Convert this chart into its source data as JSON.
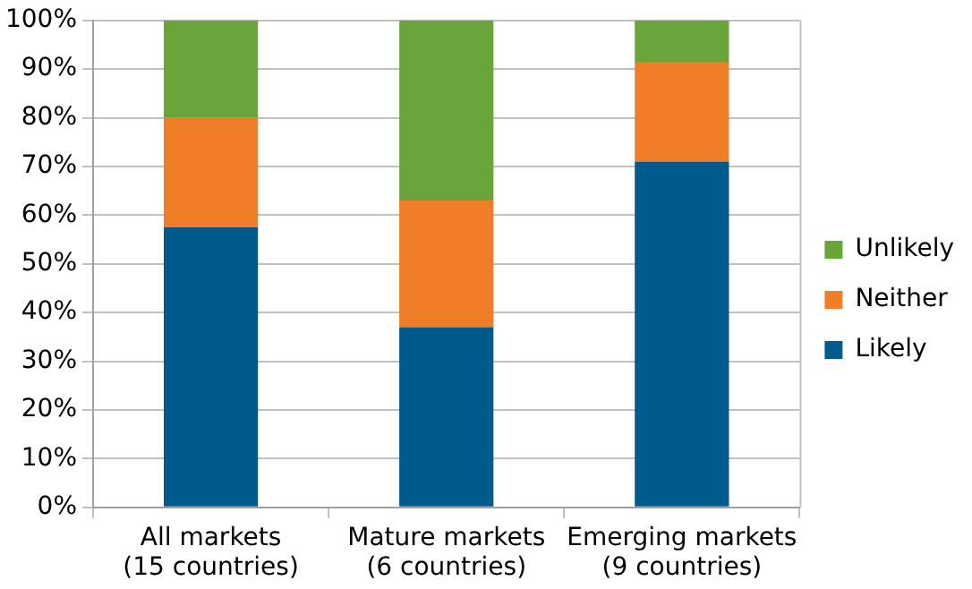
{
  "chart_data": {
    "type": "bar",
    "stacked": true,
    "categories": [
      "All markets\n(15 countries)",
      "Mature markets\n(6 countries)",
      "Emerging markets\n(9 countries)"
    ],
    "series": [
      {
        "name": "Likely",
        "color": "#005a8c",
        "values": [
          57.5,
          37,
          71
        ]
      },
      {
        "name": "Neither",
        "color": "#f07d28",
        "values": [
          22.5,
          26,
          20.5
        ]
      },
      {
        "name": "Unlikely",
        "color": "#6aa53a",
        "values": [
          20,
          37,
          8.5
        ]
      }
    ],
    "ylim": [
      0,
      100
    ],
    "yticks": [
      {
        "value": 0,
        "label": "0%"
      },
      {
        "value": 10,
        "label": "10%"
      },
      {
        "value": 20,
        "label": "20%"
      },
      {
        "value": 30,
        "label": "30%"
      },
      {
        "value": 40,
        "label": "40%"
      },
      {
        "value": 50,
        "label": "50%"
      },
      {
        "value": 60,
        "label": "60%"
      },
      {
        "value": 70,
        "label": "70%"
      },
      {
        "value": 80,
        "label": "80%"
      },
      {
        "value": 90,
        "label": "90%"
      },
      {
        "value": 100,
        "label": "100%"
      }
    ],
    "grid": "y",
    "legend": "right"
  }
}
